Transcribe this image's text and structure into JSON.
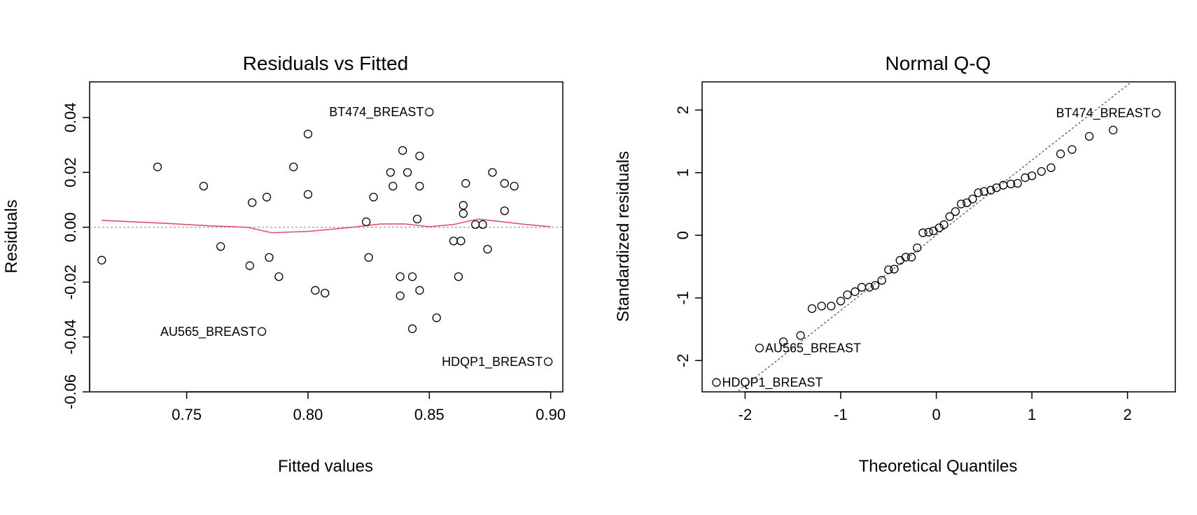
{
  "chart_data": [
    {
      "type": "scatter",
      "title": "Residuals vs Fitted",
      "xlabel": "Fitted values",
      "ylabel": "Residuals",
      "xlim": [
        0.71,
        0.905
      ],
      "ylim": [
        -0.06,
        0.053
      ],
      "xticks": [
        0.75,
        0.8,
        0.85,
        0.9
      ],
      "xtick_labels": [
        "0.75",
        "0.80",
        "0.85",
        "0.90"
      ],
      "yticks": [
        -0.06,
        -0.04,
        -0.02,
        0.0,
        0.02,
        0.04
      ],
      "ytick_labels": [
        "-0.06",
        "-0.04",
        "-0.02",
        "0.00",
        "0.02",
        "0.04"
      ],
      "reference_line_y": 0,
      "points": [
        {
          "x": 0.715,
          "y": -0.012
        },
        {
          "x": 0.738,
          "y": 0.022
        },
        {
          "x": 0.757,
          "y": 0.015
        },
        {
          "x": 0.764,
          "y": -0.007
        },
        {
          "x": 0.776,
          "y": -0.014
        },
        {
          "x": 0.777,
          "y": 0.009
        },
        {
          "x": 0.781,
          "y": -0.038
        },
        {
          "x": 0.783,
          "y": 0.011
        },
        {
          "x": 0.784,
          "y": -0.011
        },
        {
          "x": 0.788,
          "y": -0.018
        },
        {
          "x": 0.794,
          "y": 0.022
        },
        {
          "x": 0.8,
          "y": 0.034
        },
        {
          "x": 0.8,
          "y": 0.012
        },
        {
          "x": 0.803,
          "y": -0.023
        },
        {
          "x": 0.807,
          "y": -0.024
        },
        {
          "x": 0.824,
          "y": 0.002
        },
        {
          "x": 0.825,
          "y": -0.011
        },
        {
          "x": 0.827,
          "y": 0.011
        },
        {
          "x": 0.834,
          "y": 0.02
        },
        {
          "x": 0.835,
          "y": 0.015
        },
        {
          "x": 0.838,
          "y": -0.018
        },
        {
          "x": 0.838,
          "y": -0.025
        },
        {
          "x": 0.839,
          "y": 0.028
        },
        {
          "x": 0.841,
          "y": 0.02
        },
        {
          "x": 0.843,
          "y": -0.018
        },
        {
          "x": 0.843,
          "y": -0.037
        },
        {
          "x": 0.845,
          "y": 0.003
        },
        {
          "x": 0.846,
          "y": 0.026
        },
        {
          "x": 0.846,
          "y": 0.015
        },
        {
          "x": 0.846,
          "y": -0.023
        },
        {
          "x": 0.85,
          "y": 0.042
        },
        {
          "x": 0.853,
          "y": -0.033
        },
        {
          "x": 0.86,
          "y": -0.005
        },
        {
          "x": 0.862,
          "y": -0.018
        },
        {
          "x": 0.863,
          "y": -0.005
        },
        {
          "x": 0.864,
          "y": 0.008
        },
        {
          "x": 0.864,
          "y": 0.005
        },
        {
          "x": 0.865,
          "y": 0.016
        },
        {
          "x": 0.869,
          "y": 0.001
        },
        {
          "x": 0.872,
          "y": 0.001
        },
        {
          "x": 0.874,
          "y": -0.008
        },
        {
          "x": 0.876,
          "y": 0.02
        },
        {
          "x": 0.881,
          "y": 0.016
        },
        {
          "x": 0.881,
          "y": 0.006
        },
        {
          "x": 0.885,
          "y": 0.015
        },
        {
          "x": 0.899,
          "y": -0.049
        }
      ],
      "smooth_line": {
        "color": "#df536b",
        "x": [
          0.715,
          0.74,
          0.76,
          0.775,
          0.785,
          0.8,
          0.815,
          0.83,
          0.84,
          0.85,
          0.86,
          0.87,
          0.88,
          0.89,
          0.9
        ],
        "y": [
          0.0025,
          0.0015,
          0.0005,
          0.0,
          -0.002,
          -0.0015,
          -0.0003,
          0.0012,
          0.0012,
          0.0002,
          0.001,
          0.003,
          0.002,
          0.001,
          0.0002
        ]
      },
      "labels": [
        {
          "text": "BT474_BREAST",
          "x": 0.85,
          "y": 0.042
        },
        {
          "text": "AU565_BREAST",
          "x": 0.781,
          "y": -0.038
        },
        {
          "text": "HDQP1_BREAST",
          "x": 0.899,
          "y": -0.049
        }
      ]
    },
    {
      "type": "scatter",
      "title": "Normal Q-Q",
      "xlabel": "Theoretical Quantiles",
      "ylabel": "Standardized residuals",
      "xlim": [
        -2.45,
        2.5
      ],
      "ylim": [
        -2.5,
        2.45
      ],
      "xticks": [
        -2,
        -1,
        0,
        1,
        2
      ],
      "xtick_labels": [
        "-2",
        "-1",
        "0",
        "1",
        "2"
      ],
      "yticks": [
        -2,
        -1,
        0,
        1,
        2
      ],
      "ytick_labels": [
        "-2",
        "-1",
        "0",
        "1",
        "2"
      ],
      "reference_line": {
        "intercept": 0,
        "slope": 1.2
      },
      "points": [
        {
          "x": -2.3,
          "y": -2.35
        },
        {
          "x": -1.85,
          "y": -1.8
        },
        {
          "x": -1.6,
          "y": -1.7
        },
        {
          "x": -1.42,
          "y": -1.6
        },
        {
          "x": -1.3,
          "y": -1.17
        },
        {
          "x": -1.2,
          "y": -1.13
        },
        {
          "x": -1.1,
          "y": -1.13
        },
        {
          "x": -1.0,
          "y": -1.05
        },
        {
          "x": -0.93,
          "y": -0.95
        },
        {
          "x": -0.85,
          "y": -0.9
        },
        {
          "x": -0.78,
          "y": -0.83
        },
        {
          "x": -0.7,
          "y": -0.83
        },
        {
          "x": -0.64,
          "y": -0.8
        },
        {
          "x": -0.57,
          "y": -0.72
        },
        {
          "x": -0.5,
          "y": -0.55
        },
        {
          "x": -0.44,
          "y": -0.54
        },
        {
          "x": -0.38,
          "y": -0.4
        },
        {
          "x": -0.32,
          "y": -0.35
        },
        {
          "x": -0.26,
          "y": -0.35
        },
        {
          "x": -0.2,
          "y": -0.2
        },
        {
          "x": -0.14,
          "y": 0.04
        },
        {
          "x": -0.08,
          "y": 0.05
        },
        {
          "x": -0.03,
          "y": 0.07
        },
        {
          "x": 0.03,
          "y": 0.12
        },
        {
          "x": 0.08,
          "y": 0.17
        },
        {
          "x": 0.14,
          "y": 0.3
        },
        {
          "x": 0.2,
          "y": 0.38
        },
        {
          "x": 0.26,
          "y": 0.5
        },
        {
          "x": 0.32,
          "y": 0.52
        },
        {
          "x": 0.38,
          "y": 0.58
        },
        {
          "x": 0.44,
          "y": 0.68
        },
        {
          "x": 0.5,
          "y": 0.7
        },
        {
          "x": 0.57,
          "y": 0.72
        },
        {
          "x": 0.63,
          "y": 0.76
        },
        {
          "x": 0.7,
          "y": 0.8
        },
        {
          "x": 0.78,
          "y": 0.82
        },
        {
          "x": 0.85,
          "y": 0.83
        },
        {
          "x": 0.93,
          "y": 0.92
        },
        {
          "x": 1.0,
          "y": 0.95
        },
        {
          "x": 1.1,
          "y": 1.02
        },
        {
          "x": 1.2,
          "y": 1.08
        },
        {
          "x": 1.3,
          "y": 1.3
        },
        {
          "x": 1.42,
          "y": 1.37
        },
        {
          "x": 1.6,
          "y": 1.58
        },
        {
          "x": 1.85,
          "y": 1.68
        },
        {
          "x": 2.3,
          "y": 1.95
        }
      ],
      "labels": [
        {
          "text": "BT474_BREAST",
          "x": 2.3,
          "y": 1.95
        },
        {
          "text": "AU565_BREAST",
          "x": -1.85,
          "y": -1.8
        },
        {
          "text": "HDQP1_BREAST",
          "x": -2.3,
          "y": -2.35
        }
      ]
    }
  ]
}
